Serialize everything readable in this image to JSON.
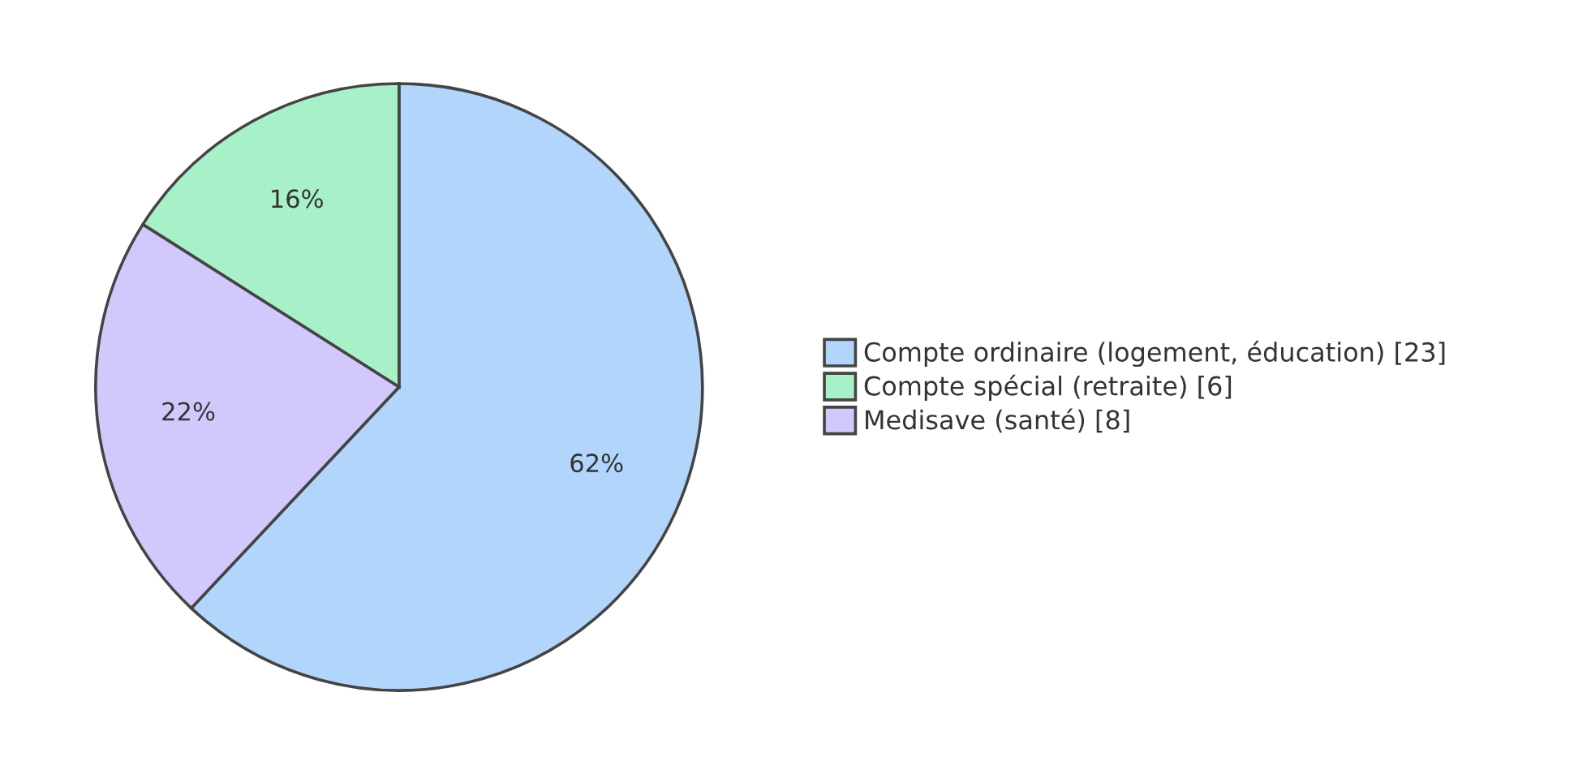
{
  "chart_data": {
    "type": "pie",
    "categories": [
      "Compte ordinaire (logement, éducation) [23]",
      "Compte spécial (retraite) [6]",
      "Medisave (santé) [8]"
    ],
    "values": [
      62,
      16,
      22
    ],
    "value_labels": [
      "62%",
      "16%",
      "22%"
    ],
    "colors": [
      "#b1d5fb",
      "#a8f1c8",
      "#d3c8fb"
    ],
    "legend": "right"
  }
}
